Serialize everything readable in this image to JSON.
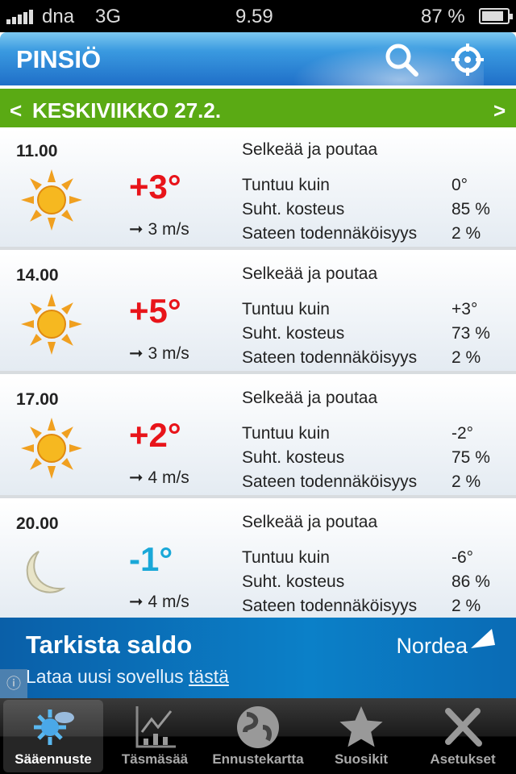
{
  "status": {
    "carrier": "dna",
    "network": "3G",
    "time": "9.59",
    "battery": "87 %"
  },
  "header": {
    "title": "PINSIÖ"
  },
  "day": {
    "prev": "<",
    "label": "KESKIVIIKKO 27.2.",
    "next": ">"
  },
  "labels": {
    "feels": "Tuntuu kuin",
    "humidity": "Suht. kosteus",
    "rain": "Sateen todennäköisyys"
  },
  "forecasts": [
    {
      "time": "11.00",
      "icon": "sun",
      "temp": "+3°",
      "wind": "3 m/s",
      "desc": "Selkeää ja poutaa",
      "feels": "0°",
      "humidity": "85 %",
      "rain": "2 %"
    },
    {
      "time": "14.00",
      "icon": "sun",
      "temp": "+5°",
      "wind": "3 m/s",
      "desc": "Selkeää ja poutaa",
      "feels": "+3°",
      "humidity": "73 %",
      "rain": "2 %"
    },
    {
      "time": "17.00",
      "icon": "sun",
      "temp": "+2°",
      "wind": "4 m/s",
      "desc": "Selkeää ja poutaa",
      "feels": "-2°",
      "humidity": "75 %",
      "rain": "2 %"
    },
    {
      "time": "20.00",
      "icon": "moon",
      "temp": "-1°",
      "wind": "4 m/s",
      "desc": "Selkeää ja poutaa",
      "feels": "-6°",
      "humidity": "86 %",
      "rain": "2 %"
    }
  ],
  "colors": {
    "warm": "#e8141a",
    "cold": "#1aa8d8",
    "daybar": "#5aaa14"
  },
  "ad": {
    "title": "Tarkista saldo",
    "sub": "Lataa uusi sovellus ",
    "link": "tästä",
    "brand": "Nordea"
  },
  "tabs": [
    {
      "label": "Sääennuste",
      "active": true
    },
    {
      "label": "Täsmäsää"
    },
    {
      "label": "Ennustekartta"
    },
    {
      "label": "Suosikit"
    },
    {
      "label": "Asetukset"
    }
  ]
}
